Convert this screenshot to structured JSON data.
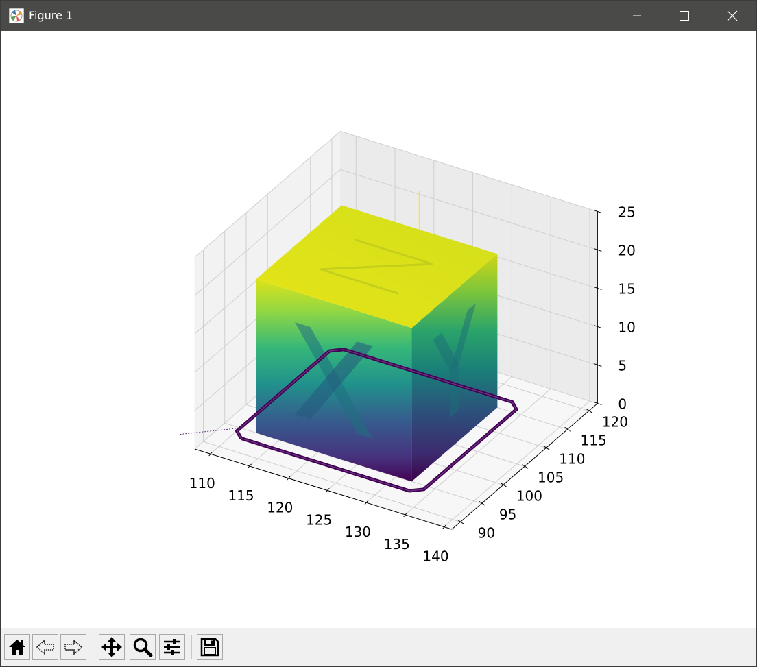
{
  "window": {
    "title": "Figure 1",
    "controls": [
      "minimize",
      "maximize",
      "close"
    ]
  },
  "toolbar": {
    "buttons": [
      {
        "name": "home",
        "icon": "home-icon"
      },
      {
        "name": "back",
        "icon": "arrow-left-icon"
      },
      {
        "name": "forward",
        "icon": "arrow-right-icon"
      },
      {
        "name": "pan",
        "icon": "move-icon"
      },
      {
        "name": "zoom",
        "icon": "magnifier-icon"
      },
      {
        "name": "configure-subplots",
        "icon": "sliders-icon"
      },
      {
        "name": "save",
        "icon": "floppy-disk-icon"
      }
    ]
  },
  "chart_data": {
    "type": "line",
    "projection": "3d",
    "title": "",
    "xlabel": "",
    "ylabel": "",
    "zlabel": "",
    "x_ticks": [
      "110",
      "115",
      "120",
      "125",
      "130",
      "135",
      "140"
    ],
    "y_ticks": [
      "90",
      "95",
      "100",
      "105",
      "110",
      "115",
      "120"
    ],
    "z_ticks": [
      "0",
      "5",
      "10",
      "15",
      "20",
      "25"
    ],
    "xlim": [
      108,
      141
    ],
    "ylim": [
      88,
      122
    ],
    "zlim": [
      0,
      25
    ],
    "grid": true,
    "colormap": "viridis",
    "colormap_by": "z",
    "colormap_stops": [
      "#440154",
      "#3b528b",
      "#21918c",
      "#5ec962",
      "#fde725"
    ],
    "series": [
      {
        "part": "cube",
        "x_range": [
          112,
          132
        ],
        "y_range": [
          95,
          115
        ],
        "z_range": [
          0,
          20
        ]
      },
      {
        "part": "skirt",
        "x_range": [
          110,
          134
        ],
        "y_range": [
          93,
          117
        ],
        "z_range": [
          0,
          0
        ]
      },
      {
        "part": "nozzle-exit",
        "x": [
          122,
          122
        ],
        "y": [
          115,
          115
        ],
        "z": [
          20,
          25
        ]
      }
    ]
  }
}
